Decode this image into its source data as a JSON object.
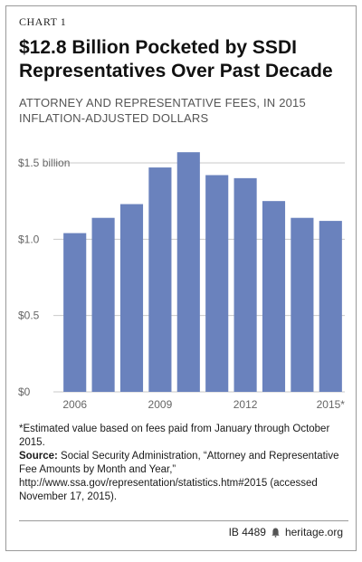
{
  "header": {
    "label": "CHART 1",
    "title": "$12.8 Billion Pocketed by SSDI Representatives Over Past Decade",
    "subtitle": "ATTORNEY AND REPRESENTATIVE FEES, IN 2015 INFLATION-ADJUSTED DOLLARS"
  },
  "chart_data": {
    "type": "bar",
    "title": "",
    "xlabel": "",
    "ylabel": "",
    "categories": [
      "2006",
      "2007",
      "2008",
      "2009",
      "2010",
      "2011",
      "2012",
      "2013",
      "2014",
      "2015*"
    ],
    "values": [
      1.04,
      1.14,
      1.23,
      1.47,
      1.57,
      1.42,
      1.4,
      1.25,
      1.14,
      1.12
    ],
    "x_tick_labels": [
      "2006",
      "",
      "",
      "2009",
      "",
      "",
      "2012",
      "",
      "",
      "2015*"
    ],
    "y_ticks": [
      0,
      0.5,
      1.0,
      1.5
    ],
    "y_tick_labels": [
      "$0",
      "$0.5",
      "$1.0",
      "$1.5 billion"
    ],
    "ylim": [
      0,
      1.5
    ],
    "grid": true,
    "bar_color": "#6a82bd",
    "grid_color": "#c9c9c9"
  },
  "notes": {
    "estimate": "*Estimated value based on fees paid from January through October 2015.",
    "source_label": "Source:",
    "source_text": "Social Security Administration, “Attorney and Representative Fee Amounts by Month and Year,” http://www.ssa.gov/representation/statistics.htm#2015 (accessed November 17, 2015)."
  },
  "footer": {
    "id": "IB 4489",
    "site": "heritage.org"
  }
}
